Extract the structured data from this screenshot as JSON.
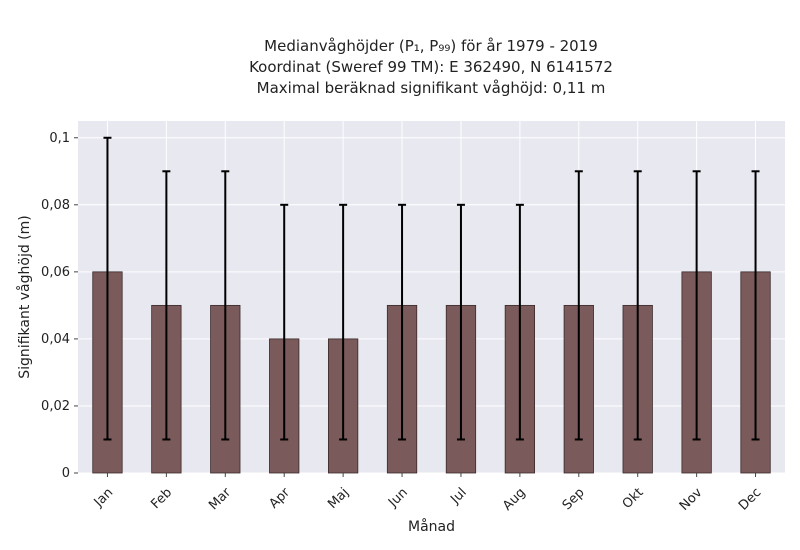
{
  "chart_data": {
    "type": "bar",
    "title_lines": [
      "Medianvåghöjder (P₁, P₉₉) för år 1979 - 2019",
      "Koordinat (Sweref 99 TM): E 362490, N 6141572",
      "Maximal beräknad signifikant våghöjd: 0,11 m"
    ],
    "xlabel": "Månad",
    "ylabel": "Signifikant våghöjd (m)",
    "categories": [
      "Jan",
      "Feb",
      "Mar",
      "Apr",
      "Maj",
      "Jun",
      "Jul",
      "Aug",
      "Sep",
      "Okt",
      "Nov",
      "Dec"
    ],
    "values": [
      0.06,
      0.05,
      0.05,
      0.04,
      0.04,
      0.05,
      0.05,
      0.05,
      0.05,
      0.05,
      0.06,
      0.06
    ],
    "p1": [
      0.01,
      0.01,
      0.01,
      0.01,
      0.01,
      0.01,
      0.01,
      0.01,
      0.01,
      0.01,
      0.01,
      0.01
    ],
    "p99": [
      0.1,
      0.09,
      0.09,
      0.08,
      0.08,
      0.08,
      0.08,
      0.08,
      0.09,
      0.09,
      0.09,
      0.09
    ],
    "ylim": [
      0,
      0.105
    ],
    "yticks": [
      0,
      0.02,
      0.04,
      0.06,
      0.08,
      0.1
    ],
    "ytick_labels": [
      "0",
      "0,02",
      "0,04",
      "0,06",
      "0,08",
      "0,1"
    ],
    "grid": true,
    "colors": {
      "bar": "#7a5a5a",
      "bar_edge": "#3a2a2a",
      "error": "#000000",
      "plot_bg": "#e8e8f0",
      "grid": "#ffffff"
    }
  }
}
